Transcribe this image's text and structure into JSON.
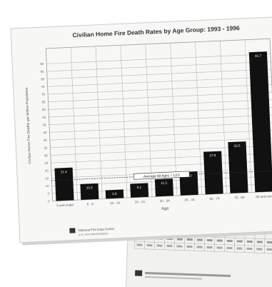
{
  "chart_data": {
    "type": "bar",
    "title": "Civilian Home Fire Death Rates by Age Group: 1993 - 1996",
    "ylabel": "Civilian Home Fire Deaths per Million Population",
    "xlabel": "Age",
    "categories": [
      "5 and under",
      "6 - 9",
      "10 - 14",
      "20 - 24",
      "25 - 34",
      "35 - 44",
      "65 - 74",
      "75 - 84",
      "85 and over"
    ],
    "values": [
      21.4,
      10.3,
      5.6,
      9.1,
      11.3,
      15.3,
      27.9,
      33.5,
      91.7
    ],
    "value_labels": [
      "21.4",
      "10.3",
      "5.6",
      "9.1",
      "11.3",
      "15.3",
      "27.9",
      "33.5",
      "91.7"
    ],
    "ylim": [
      0,
      100
    ],
    "yticks": [
      0,
      5,
      10,
      15,
      20,
      25,
      30,
      35,
      40,
      45,
      50,
      55,
      60,
      65,
      70,
      75,
      80,
      85,
      90
    ],
    "reference_line": {
      "value": 13.5,
      "label": "Average All Ages = 13.5"
    },
    "grid": true,
    "legend": "none",
    "colors": {
      "bar": "#111111",
      "grid": "#b8b8b8",
      "paper": "#f7f7f5",
      "shadow": "#d4d4d4"
    }
  },
  "footer": {
    "line1": "National Fire Data Center",
    "line2": "U.S. Fire Administration"
  }
}
